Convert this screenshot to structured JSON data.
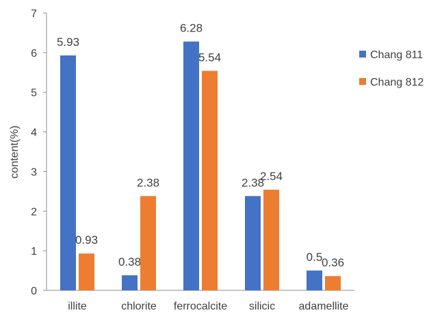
{
  "chart_data": {
    "type": "bar",
    "categories": [
      "illite",
      "chlorite",
      "ferrocalcite",
      "silicic",
      "adamellite"
    ],
    "series": [
      {
        "name": "Chang 811",
        "values": [
          5.93,
          0.38,
          6.28,
          2.38,
          0.5
        ],
        "labels": [
          "5.93",
          "0.38",
          "6.28",
          "2.38",
          "0.5"
        ],
        "color": "#4472C4"
      },
      {
        "name": "Chang 812",
        "values": [
          0.93,
          2.38,
          5.54,
          2.54,
          0.36
        ],
        "labels": [
          "0.93",
          "2.38",
          "5.54",
          "2.54",
          "0.36"
        ],
        "color": "#ED7D31"
      }
    ],
    "title": "",
    "xlabel": "",
    "ylabel": "content(%)",
    "ylim": [
      0,
      7
    ],
    "yticks": [
      "0",
      "1",
      "2",
      "3",
      "4",
      "5",
      "6",
      "7"
    ],
    "grid": false,
    "legend": "right"
  }
}
